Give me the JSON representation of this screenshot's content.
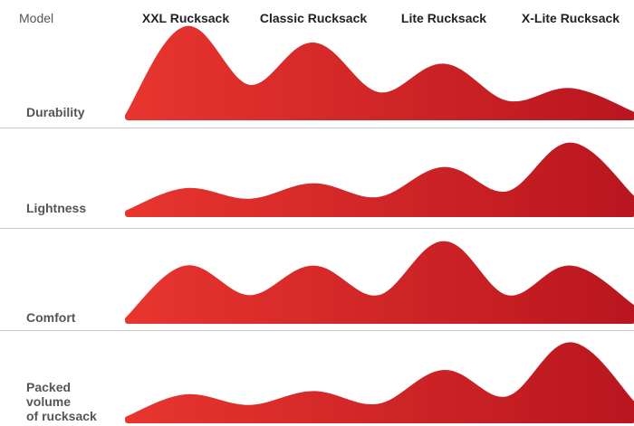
{
  "chart_data": {
    "type": "area",
    "corner_label": "Model",
    "categories": [
      "XXL Rucksack",
      "Classic Rucksack",
      "Lite Rucksack",
      "X-Lite Rucksack"
    ],
    "series": [
      {
        "name": "Durability",
        "values": [
          5,
          4,
          2.7,
          1.2
        ]
      },
      {
        "name": "Lightness",
        "values": [
          1,
          1.3,
          2.3,
          3.8
        ]
      },
      {
        "name": "Comfort",
        "values": [
          2.8,
          2.8,
          4.3,
          2.8
        ]
      },
      {
        "name": "Packed\nvolume\nof rucksack",
        "values": [
          1,
          1.2,
          2.5,
          4.2
        ]
      }
    ],
    "ylim": [
      0,
      5
    ],
    "colors": {
      "fill_start": "#e8352f",
      "fill_end": "#b9161f",
      "divider": "#c9c9c9"
    },
    "grid": false
  }
}
